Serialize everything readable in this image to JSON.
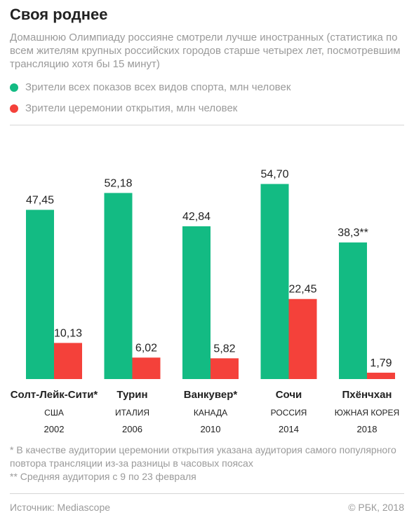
{
  "header": {
    "title": "Своя роднее",
    "subtitle": "Домашнюю Олимпиаду россияне смотрели лучше иностранных (статистика по всем жителям крупных российских городов старше четырех лет, посмотревшим трансляцию хотя бы 15 минут)"
  },
  "colors": {
    "green": "#13bb83",
    "red": "#f4413a"
  },
  "legend": [
    {
      "label": "Зрители всех показов всех видов спорта, млн человек",
      "color": "#13bb83"
    },
    {
      "label": "Зрители церемонии открытия, млн человек",
      "color": "#f4413a"
    }
  ],
  "chart_data": {
    "type": "bar",
    "categories": [
      {
        "city": "Солт-Лейк-Сити*",
        "country": "США",
        "year": "2002"
      },
      {
        "city": "Турин",
        "country": "ИТАЛИЯ",
        "year": "2006"
      },
      {
        "city": "Ванкувер*",
        "country": "КАНАДА",
        "year": "2010"
      },
      {
        "city": "Сочи",
        "country": "РОССИЯ",
        "year": "2014"
      },
      {
        "city": "Пхёнчхан",
        "country": "ЮЖНАЯ КОРЕЯ",
        "year": "2018"
      }
    ],
    "series": [
      {
        "name": "Зрители всех показов всех видов спорта, млн человек",
        "values": [
          47.45,
          52.18,
          42.84,
          54.7,
          38.3
        ],
        "labels": [
          "47,45",
          "52,18",
          "42,84",
          "54,70",
          "38,3**"
        ]
      },
      {
        "name": "Зрители церемонии открытия, млн человек",
        "values": [
          10.13,
          6.02,
          5.82,
          22.45,
          1.79
        ],
        "labels": [
          "10,13",
          "6,02",
          "5,82",
          "22,45",
          "1,79"
        ]
      }
    ],
    "ylim": [
      0,
      60
    ],
    "grid": false,
    "legend_position": "top-left"
  },
  "notes": [
    "* В качестве аудитории церемонии открытия указана аудитория самого популярного повтора трансляции из-за разницы в часовых поясах",
    "** Средняя аудитория с 9 по 23 февраля"
  ],
  "footer": {
    "source": "Источник: Mediascope",
    "copyright": "© РБК, 2018"
  }
}
